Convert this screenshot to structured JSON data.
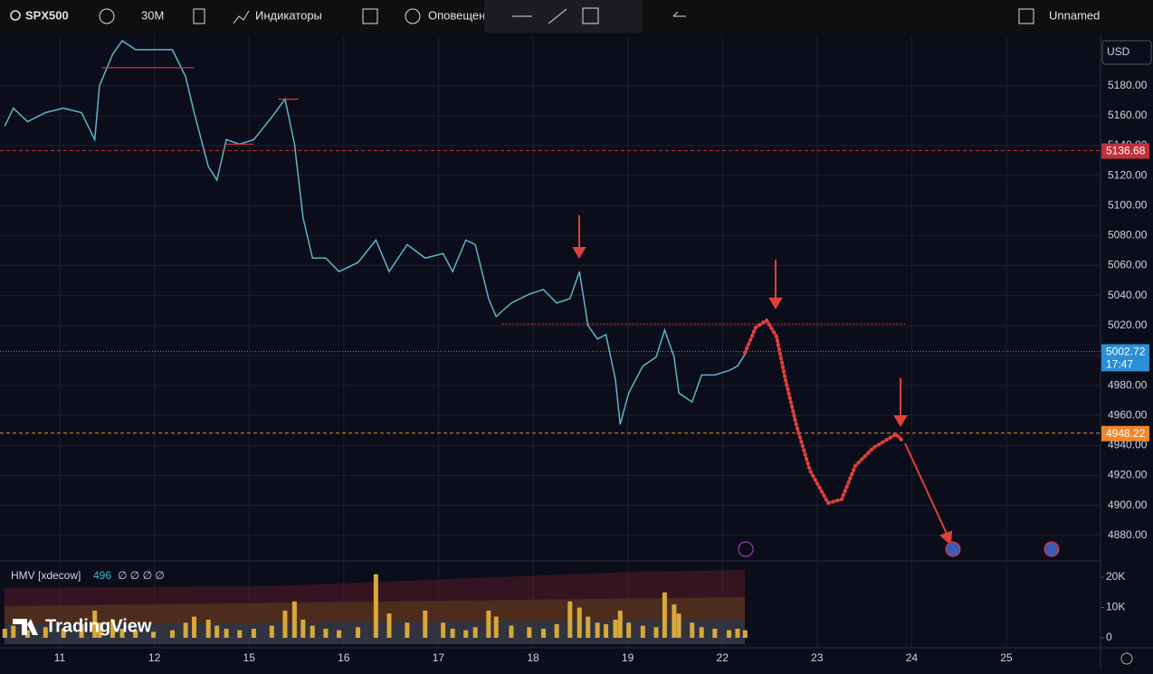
{
  "toolbar": {
    "symbol": "SPX500",
    "interval": "30M",
    "indicators": "Индикаторы",
    "alerts": "Оповещен",
    "layout_name": "Unnamed",
    "currency": "USD"
  },
  "chart_data": {
    "type": "line",
    "xticks": [
      {
        "value": 0,
        "label": "11"
      },
      {
        "value": 1,
        "label": "12"
      },
      {
        "value": 2,
        "label": "15"
      },
      {
        "value": 3,
        "label": "16"
      },
      {
        "value": 4,
        "label": "17"
      },
      {
        "value": 5,
        "label": "18"
      },
      {
        "value": 6,
        "label": "19"
      },
      {
        "value": 7,
        "label": "22"
      },
      {
        "value": 8,
        "label": "23"
      },
      {
        "value": 9,
        "label": "24"
      },
      {
        "value": 10,
        "label": "25"
      }
    ],
    "xlim": [
      -0.631,
      10.994
    ],
    "ylim": [
      4863,
      5213
    ],
    "yticks": [
      {
        "value": 4880,
        "label": "4880.00"
      },
      {
        "value": 4900,
        "label": "4900.00"
      },
      {
        "value": 4920,
        "label": "4920.00"
      },
      {
        "value": 4940,
        "label": "4940.00"
      },
      {
        "value": 4960,
        "label": "4960.00"
      },
      {
        "value": 4980,
        "label": "4980.00"
      },
      {
        "value": 5000,
        "label": "5000.00"
      },
      {
        "value": 5020,
        "label": "5020.00"
      },
      {
        "value": 5040,
        "label": "5040.00"
      },
      {
        "value": 5060,
        "label": "5060.00"
      },
      {
        "value": 5080,
        "label": "5080.00"
      },
      {
        "value": 5100,
        "label": "5100.00"
      },
      {
        "value": 5120,
        "label": "5120.00"
      },
      {
        "value": 5140,
        "label": "5140.00"
      },
      {
        "value": 5160,
        "label": "5160.00"
      },
      {
        "value": 5180,
        "label": "5180.00"
      }
    ],
    "grid": true,
    "series": [
      {
        "color": "#5fb4c9",
        "x": [
          -0.58,
          -0.49,
          -0.34,
          -0.15,
          0.04,
          0.23,
          0.37,
          0.42,
          0.56,
          0.66,
          0.8,
          0.99,
          1.19,
          1.33,
          1.42,
          1.57,
          1.66,
          1.76,
          1.9,
          2.05,
          2.24,
          2.38,
          2.48,
          2.57,
          2.67,
          2.81,
          2.95,
          3.15,
          3.34,
          3.48,
          3.67,
          3.86,
          4.05,
          4.15,
          4.29,
          4.39,
          4.53,
          4.61,
          4.77,
          4.96,
          5.11,
          5.25,
          5.39,
          5.49,
          5.58,
          5.68,
          5.77,
          5.87,
          5.92,
          6.01,
          6.16,
          6.3,
          6.39,
          6.49,
          6.54,
          6.68,
          6.78,
          6.92,
          7.07,
          7.16,
          7.24
        ],
        "values": [
          5153,
          5165,
          5156,
          5162,
          5165,
          5162,
          5144,
          5180,
          5201,
          5210,
          5204,
          5204,
          5204,
          5186,
          5162,
          5126,
          5117,
          5144,
          5141,
          5144,
          5159,
          5171,
          5141,
          5092,
          5065,
          5065,
          5056,
          5062,
          5077,
          5056,
          5074,
          5065,
          5068,
          5056,
          5077,
          5074,
          5038,
          5026,
          5035,
          5041,
          5044,
          5035,
          5038,
          5056,
          5020,
          5011,
          5014,
          4984,
          4954,
          4975,
          4993,
          4999,
          5017,
          4999,
          4975,
          4969,
          4987,
          4987,
          4990,
          4993,
          5001
        ]
      }
    ],
    "levels": [
      {
        "value": 5136.68,
        "color": "#c0313c"
      },
      {
        "value": 5002.72,
        "color": "#2b8fd6",
        "countdown": "17:47"
      },
      {
        "value": 4948.22,
        "color": "#f0862a"
      }
    ],
    "drawings": [
      {
        "value": 5192,
        "x": [
          0.44,
          1.42
        ],
        "color": "#e0323c"
      },
      {
        "value": 5171,
        "x": [
          2.31,
          2.52
        ],
        "color": "#e0323c"
      },
      {
        "value": 5141,
        "x": [
          1.76,
          2.05
        ],
        "color": "#e0323c"
      },
      {
        "value": 5021,
        "x": [
          4.67,
          8.93
        ],
        "color": "#c0313c"
      }
    ],
    "volume": {
      "title": "HMV [xdecow]",
      "count": "496",
      "flags": "∅ ∅ ∅ ∅",
      "color": "#d9a83a",
      "ylim": [
        -2100,
        24800
      ],
      "yticks": [
        {
          "value": 0,
          "label": "0"
        },
        {
          "value": 10000,
          "label": "10K"
        },
        {
          "value": 20000,
          "label": "20K"
        }
      ],
      "values": [
        3000,
        4000,
        2500,
        3500,
        3000,
        4500,
        9000,
        5000,
        6000,
        3000,
        2500,
        2000,
        2500,
        5000,
        7000,
        6000,
        4000,
        3000,
        2500,
        3000,
        4000,
        9000,
        12000,
        6000,
        4000,
        3000,
        2500,
        3500,
        21000,
        8000,
        5000,
        9000,
        5000,
        3000,
        2500,
        3500,
        9000,
        7000,
        4000,
        3500,
        3000,
        4500,
        12000,
        10000,
        7000,
        5000,
        4500,
        6000,
        9000,
        5000,
        4000,
        3500,
        15000,
        11000,
        8000,
        5000,
        3500,
        3000,
        2500,
        3000,
        2500
      ]
    }
  },
  "branding": "TradingView"
}
